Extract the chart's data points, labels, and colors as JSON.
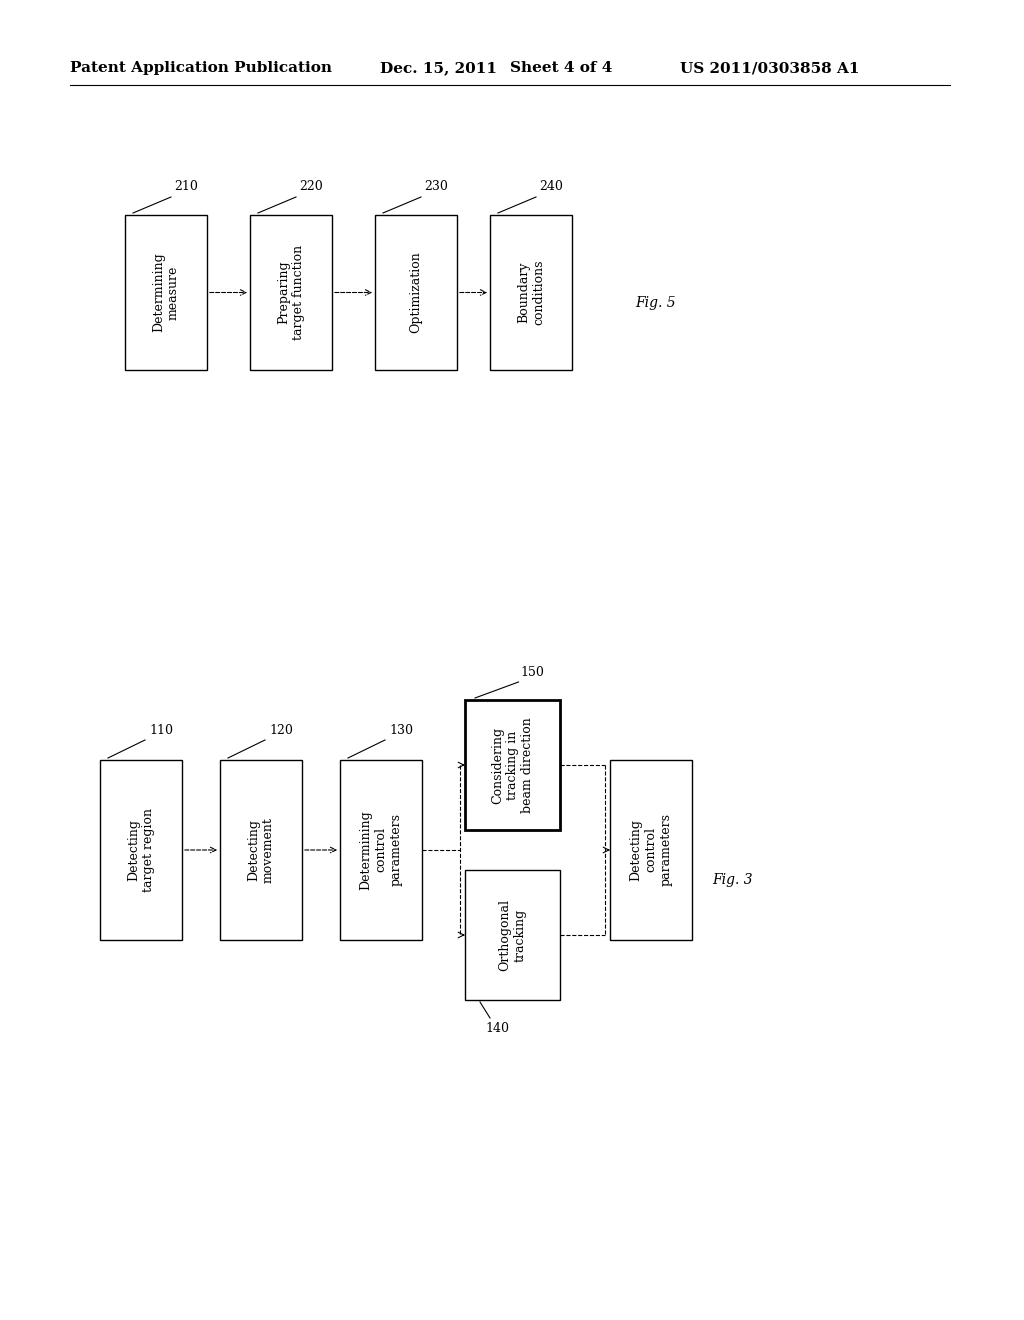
{
  "background_color": "#ffffff",
  "header_left": "Patent Application Publication",
  "header_date": "Dec. 15, 2011",
  "header_sheet": "Sheet 4 of 4",
  "header_patent": "US 2011/0303858 A1",
  "fig3_label": "Fig. 3",
  "fig5_label": "Fig. 5",
  "box_color": "#ffffff",
  "box_edge_color": "#000000",
  "text_color": "#000000",
  "font_size": 9,
  "label_font_size": 9,
  "header_font_size": 11,
  "fig_label_font_size": 10
}
